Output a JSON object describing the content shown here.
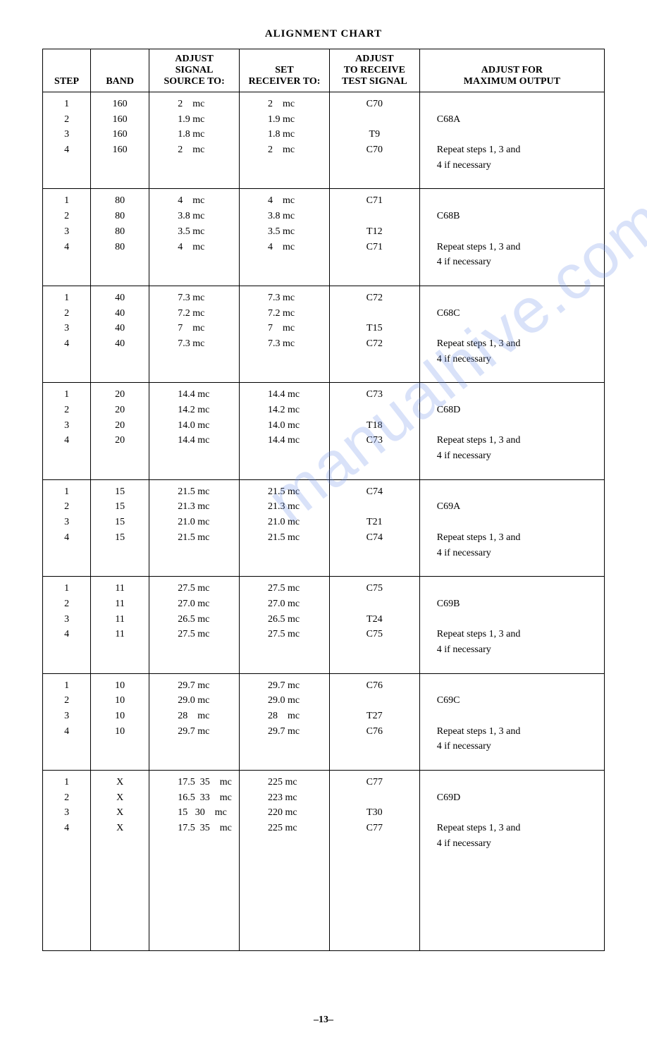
{
  "title": "ALIGNMENT CHART",
  "page_number": "–13–",
  "watermark": "manualhive.com",
  "columns": {
    "step": "STEP",
    "band": "BAND",
    "signal": "ADJUST\nSIGNAL\nSOURCE TO:",
    "receiver": "SET\nRECEIVER TO:",
    "adjust": "ADJUST\nTO RECEIVE\nTEST SIGNAL",
    "output": "ADJUST FOR\nMAXIMUM OUTPUT"
  },
  "groups": [
    {
      "steps": [
        "1",
        "2",
        "3",
        "4"
      ],
      "bands": [
        "160",
        "160",
        "160",
        "160"
      ],
      "signals": [
        "2    mc",
        "1.9 mc",
        "1.8 mc",
        "2    mc"
      ],
      "recv": [
        "2    mc",
        "1.9 mc",
        "1.8 mc",
        "2    mc"
      ],
      "adjust": [
        "C70",
        "",
        "T9",
        "C70"
      ],
      "output": [
        "",
        "C68A",
        "",
        "Repeat steps 1, 3 and\n4 if necessary"
      ]
    },
    {
      "steps": [
        "1",
        "2",
        "3",
        "4"
      ],
      "bands": [
        "80",
        "80",
        "80",
        "80"
      ],
      "signals": [
        "4    mc",
        "3.8 mc",
        "3.5 mc",
        "4    mc"
      ],
      "recv": [
        "4    mc",
        "3.8 mc",
        "3.5 mc",
        "4    mc"
      ],
      "adjust": [
        "C71",
        "",
        "T12",
        "C71"
      ],
      "output": [
        "",
        "C68B",
        "",
        "Repeat steps 1, 3 and\n4 if necessary"
      ]
    },
    {
      "steps": [
        "1",
        "2",
        "3",
        "4"
      ],
      "bands": [
        "40",
        "40",
        "40",
        "40"
      ],
      "signals": [
        "7.3 mc",
        "7.2 mc",
        "7    mc",
        "7.3 mc"
      ],
      "recv": [
        "7.3 mc",
        "7.2 mc",
        "7    mc",
        "7.3 mc"
      ],
      "adjust": [
        "C72",
        "",
        "T15",
        "C72"
      ],
      "output": [
        "",
        "C68C",
        "",
        "Repeat steps 1, 3 and\n4 if necessary"
      ]
    },
    {
      "steps": [
        "1",
        "2",
        "3",
        "4"
      ],
      "bands": [
        "20",
        "20",
        "20",
        "20"
      ],
      "signals": [
        "14.4 mc",
        "14.2 mc",
        "14.0 mc",
        "14.4 mc"
      ],
      "recv": [
        "14.4 mc",
        "14.2 mc",
        "14.0 mc",
        "14.4 mc"
      ],
      "adjust": [
        "C73",
        "",
        "T18",
        "C73"
      ],
      "output": [
        "",
        "C68D",
        "",
        "Repeat steps 1, 3 and\n4 if necessary"
      ]
    },
    {
      "steps": [
        "1",
        "2",
        "3",
        "4"
      ],
      "bands": [
        "15",
        "15",
        "15",
        "15"
      ],
      "signals": [
        "21.5 mc",
        "21.3 mc",
        "21.0 mc",
        "21.5 mc"
      ],
      "recv": [
        "21.5 mc",
        "21.3 mc",
        "21.0 mc",
        "21.5 mc"
      ],
      "adjust": [
        "C74",
        "",
        "T21",
        "C74"
      ],
      "output": [
        "",
        "C69A",
        "",
        "Repeat steps 1, 3 and\n4 if necessary"
      ]
    },
    {
      "steps": [
        "1",
        "2",
        "3",
        "4"
      ],
      "bands": [
        "11",
        "11",
        "11",
        "11"
      ],
      "signals": [
        "27.5 mc",
        "27.0 mc",
        "26.5 mc",
        "27.5 mc"
      ],
      "recv": [
        "27.5 mc",
        "27.0 mc",
        "26.5 mc",
        "27.5 mc"
      ],
      "adjust": [
        "C75",
        "",
        "T24",
        "C75"
      ],
      "output": [
        "",
        "C69B",
        "",
        "Repeat steps 1, 3 and\n4 if necessary"
      ]
    },
    {
      "steps": [
        "1",
        "2",
        "3",
        "4"
      ],
      "bands": [
        "10",
        "10",
        "10",
        "10"
      ],
      "signals": [
        "29.7 mc",
        "29.0 mc",
        "28    mc",
        "29.7 mc"
      ],
      "recv": [
        "29.7 mc",
        "29.0 mc",
        "28    mc",
        "29.7 mc"
      ],
      "adjust": [
        "C76",
        "",
        "T27",
        "C76"
      ],
      "output": [
        "",
        "C69C",
        "",
        "Repeat steps 1, 3 and\n4 if necessary"
      ]
    },
    {
      "steps": [
        "1",
        "2",
        "3",
        "4"
      ],
      "bands": [
        "X",
        "X",
        "X",
        "X"
      ],
      "signals": [
        "17.5  35    mc",
        "16.5  33    mc",
        "15   30    mc",
        "17.5  35    mc"
      ],
      "recv": [
        "225 mc",
        "223 mc",
        "220 mc",
        "225 mc"
      ],
      "adjust": [
        "C77",
        "",
        "T30",
        "C77"
      ],
      "output": [
        "",
        "C69D",
        "",
        "Repeat steps 1, 3 and\n4 if necessary"
      ],
      "extra_bottom_space": true
    }
  ]
}
